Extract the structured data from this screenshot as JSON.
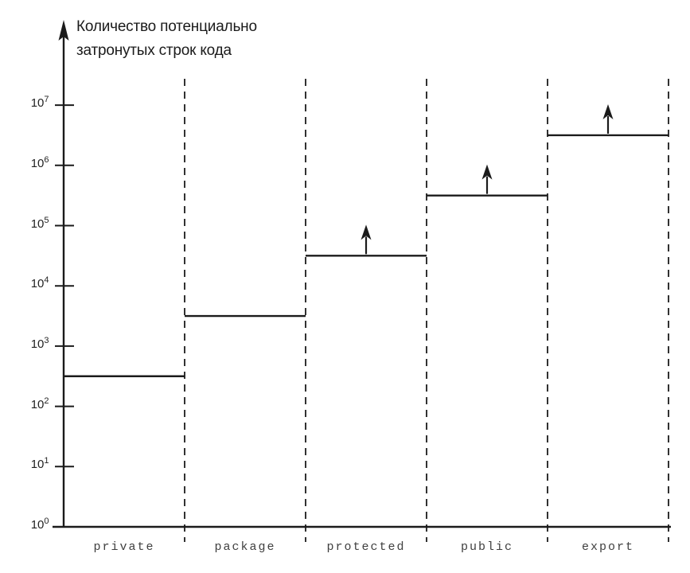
{
  "figure": {
    "background": "#ffffff",
    "ink": "#1b1b1b",
    "category_label_color": "#3f3f3f"
  },
  "chart_data": {
    "type": "step",
    "title": "",
    "ylabel_lines": [
      "Количество потенциально",
      "затронутых строк кода"
    ],
    "ylabel": "Количество потенциально затронутых строк кода",
    "yscale": "log10",
    "ylim_log10": [
      0,
      7
    ],
    "y_tick_base": "10",
    "y_tick_exponents": [
      0,
      1,
      2,
      3,
      4,
      5,
      6,
      7
    ],
    "categories": [
      "private",
      "package",
      "protected",
      "public",
      "export"
    ],
    "series": [
      {
        "name": "Количество потенциально затронутых строк кода",
        "values_approx": [
          300,
          3000,
          30000,
          300000,
          3000000
        ],
        "values_log10": [
          2.5,
          3.5,
          4.5,
          5.5,
          6.5
        ],
        "open_ended_arrow": [
          false,
          false,
          true,
          true,
          true
        ]
      }
    ],
    "legend_position": "none",
    "grid": "dashed-vertical-category-separators",
    "xlabel": ""
  }
}
